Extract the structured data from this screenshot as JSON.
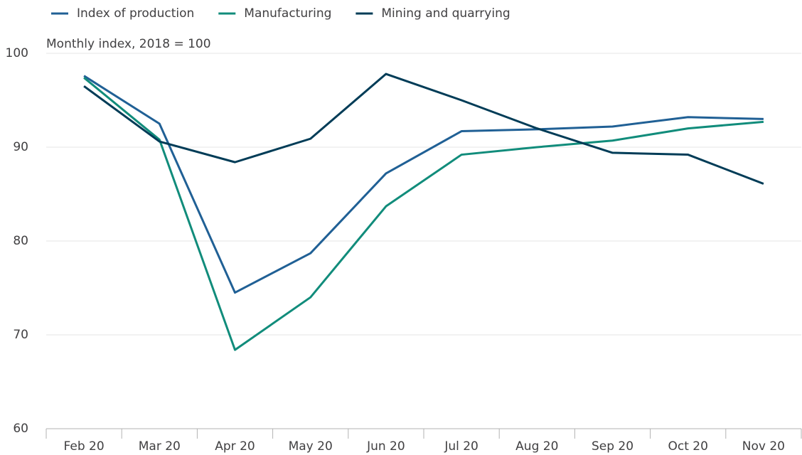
{
  "chart_data": {
    "type": "line",
    "subtitle": "Monthly index, 2018 = 100",
    "categories": [
      "Feb 20",
      "Mar 20",
      "Apr 20",
      "May 20",
      "Jun 20",
      "Jul 20",
      "Aug 20",
      "Sep 20",
      "Oct 20",
      "Nov 20"
    ],
    "series": [
      {
        "name": "Index of production",
        "color": "#206095",
        "values": [
          97.6,
          92.5,
          74.5,
          78.7,
          87.2,
          91.7,
          91.9,
          92.2,
          93.2,
          93.0
        ]
      },
      {
        "name": "Manufacturing",
        "color": "#118c7b",
        "values": [
          97.4,
          90.8,
          68.4,
          74.0,
          83.7,
          89.2,
          90.0,
          90.7,
          92.0,
          92.7
        ]
      },
      {
        "name": "Mining and quarrying",
        "color": "#003c57",
        "values": [
          96.5,
          90.6,
          88.4,
          90.9,
          97.8,
          95.0,
          92.0,
          89.4,
          89.2,
          86.1
        ]
      }
    ],
    "ylim": [
      60,
      100
    ],
    "yticks": [
      60,
      70,
      80,
      90,
      100
    ],
    "grid": true,
    "legend": "top"
  }
}
